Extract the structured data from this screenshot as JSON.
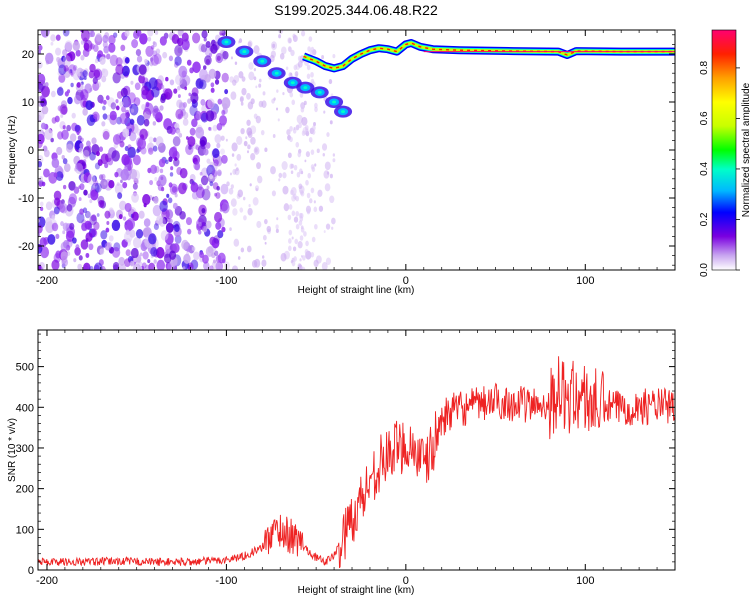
{
  "figure": {
    "title": "S199.2025.344.06.48.R22"
  },
  "chart_data": [
    {
      "type": "heatmap",
      "title": "",
      "xlabel": "Height of straight line (km)",
      "ylabel": "Frequency (Hz)",
      "xlim": [
        -205,
        150
      ],
      "ylim": [
        -25,
        25
      ],
      "x_ticks": [
        -200,
        -100,
        0,
        100
      ],
      "y_ticks": [
        20,
        10,
        0,
        -10,
        -20
      ],
      "colorbar": {
        "label": "Normalized spectral amplitude",
        "ticks": [
          0.0,
          0.2,
          0.4,
          0.6,
          0.8
        ],
        "range": [
          0,
          0.95
        ],
        "colormap": [
          "#ffffff",
          "#c9a7f0",
          "#7a00e0",
          "#0000ff",
          "#00b8ff",
          "#00ffc8",
          "#00ff00",
          "#c8ff00",
          "#ffff00",
          "#ffa000",
          "#ff2000",
          "#ff0070"
        ]
      },
      "features": {
        "noise_region_x": [
          -205,
          -100
        ],
        "sparse_noise_x": [
          -100,
          -40
        ],
        "descending_track": [
          [
            -100,
            22.5
          ],
          [
            -90,
            20.5
          ],
          [
            -80,
            18.5
          ],
          [
            -72,
            16
          ],
          [
            -63,
            14
          ],
          [
            -56,
            13
          ],
          [
            -48,
            12
          ],
          [
            -40,
            10
          ],
          [
            -35,
            8
          ]
        ],
        "carrier_track": [
          [
            -57,
            19.5
          ],
          [
            -50,
            18.5
          ],
          [
            -45,
            17.5
          ],
          [
            -40,
            17
          ],
          [
            -35,
            17.5
          ],
          [
            -30,
            19
          ],
          [
            -25,
            20
          ],
          [
            -20,
            20.8
          ],
          [
            -15,
            21.2
          ],
          [
            -10,
            21
          ],
          [
            -5,
            20.5
          ],
          [
            0,
            22
          ],
          [
            3,
            22.3
          ],
          [
            8,
            21.5
          ],
          [
            15,
            21
          ],
          [
            30,
            20.8
          ],
          [
            60,
            20.6
          ],
          [
            85,
            20.5
          ],
          [
            90,
            19.8
          ],
          [
            95,
            20.6
          ],
          [
            120,
            20.5
          ],
          [
            150,
            20.5
          ]
        ]
      }
    },
    {
      "type": "line",
      "title": "",
      "xlabel": "Height of straight line (km)",
      "ylabel": "SNR (10 * v/v)",
      "xlim": [
        -205,
        150
      ],
      "ylim": [
        0,
        590
      ],
      "x_ticks": [
        -200,
        -100,
        0,
        100
      ],
      "y_ticks": [
        0,
        100,
        200,
        300,
        400,
        500
      ],
      "color": "#ee2222",
      "series": [
        {
          "x": [
            -205,
            -190,
            -175,
            -160,
            -140,
            -120,
            -100,
            -90,
            -80,
            -75,
            -70,
            -65,
            -60,
            -55,
            -50,
            -45,
            -40,
            -35,
            -30,
            -25,
            -20,
            -15,
            -10,
            -5,
            0,
            5,
            10,
            15,
            20,
            25,
            30,
            35,
            40,
            45,
            50,
            60,
            70,
            80,
            85,
            90,
            95,
            100,
            105,
            110,
            120,
            130,
            140,
            150
          ],
          "values": [
            20,
            20,
            20,
            22,
            20,
            20,
            25,
            35,
            55,
            90,
            100,
            85,
            70,
            50,
            30,
            20,
            35,
            80,
            130,
            170,
            220,
            260,
            280,
            300,
            310,
            300,
            250,
            300,
            370,
            390,
            395,
            400,
            405,
            410,
            415,
            410,
            405,
            410,
            440,
            420,
            430,
            420,
            410,
            400,
            400,
            400,
            405,
            400
          ]
        }
      ]
    }
  ]
}
